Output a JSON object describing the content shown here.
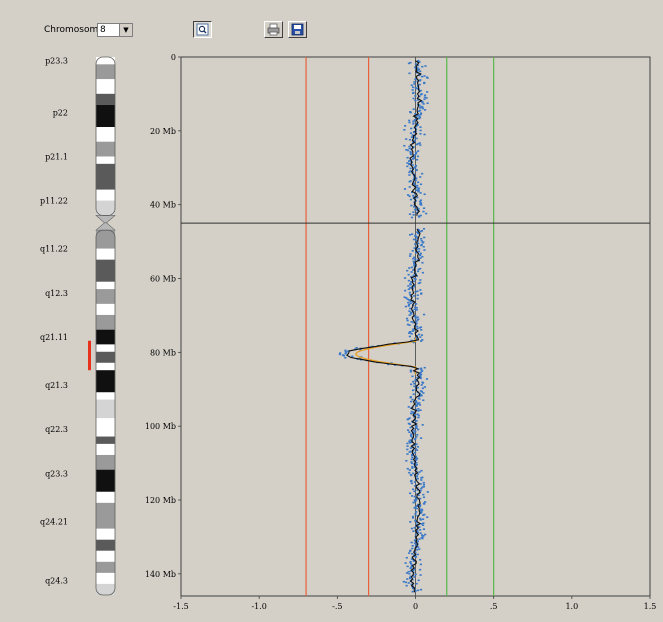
{
  "toolbar": {
    "chromosome_label": "Chromosome",
    "chromosome_value": "8",
    "icons": [
      "zoom-icon",
      "print-icon",
      "save-icon"
    ]
  },
  "ideogram": {
    "band_labels": [
      {
        "label": "p23.3",
        "mb": 1
      },
      {
        "label": "p22",
        "mb": 15
      },
      {
        "label": "p21.1",
        "mb": 27
      },
      {
        "label": "p11.22",
        "mb": 39
      },
      {
        "label": "q11.22",
        "mb": 52
      },
      {
        "label": "q12.3",
        "mb": 64
      },
      {
        "label": "q21.11",
        "mb": 76
      },
      {
        "label": "q21.3",
        "mb": 89
      },
      {
        "label": "q22.3",
        "mb": 101
      },
      {
        "label": "q23.3",
        "mb": 113
      },
      {
        "label": "q24.21",
        "mb": 126
      },
      {
        "label": "q24.3",
        "mb": 142
      }
    ],
    "bands": [
      {
        "start": 0,
        "end": 2,
        "stain": "gneg"
      },
      {
        "start": 2,
        "end": 6,
        "stain": "gpos50"
      },
      {
        "start": 6,
        "end": 10,
        "stain": "gneg"
      },
      {
        "start": 10,
        "end": 13,
        "stain": "gpos75"
      },
      {
        "start": 13,
        "end": 19,
        "stain": "gpos100"
      },
      {
        "start": 19,
        "end": 23,
        "stain": "gneg"
      },
      {
        "start": 23,
        "end": 27,
        "stain": "gpos50"
      },
      {
        "start": 27,
        "end": 29,
        "stain": "gneg"
      },
      {
        "start": 29,
        "end": 36,
        "stain": "gpos75"
      },
      {
        "start": 36,
        "end": 39,
        "stain": "gneg"
      },
      {
        "start": 39,
        "end": 43,
        "stain": "gpos25"
      },
      {
        "start": 43,
        "end": 45,
        "stain": "acen"
      },
      {
        "start": 45,
        "end": 47,
        "stain": "acen"
      },
      {
        "start": 47,
        "end": 52,
        "stain": "gpos50"
      },
      {
        "start": 52,
        "end": 55,
        "stain": "gneg"
      },
      {
        "start": 55,
        "end": 61,
        "stain": "gpos75"
      },
      {
        "start": 61,
        "end": 63,
        "stain": "gneg"
      },
      {
        "start": 63,
        "end": 67,
        "stain": "gpos50"
      },
      {
        "start": 67,
        "end": 70,
        "stain": "gneg"
      },
      {
        "start": 70,
        "end": 74,
        "stain": "gpos50"
      },
      {
        "start": 74,
        "end": 78,
        "stain": "gpos100"
      },
      {
        "start": 78,
        "end": 80,
        "stain": "gneg"
      },
      {
        "start": 80,
        "end": 83,
        "stain": "gpos75"
      },
      {
        "start": 83,
        "end": 85,
        "stain": "gneg"
      },
      {
        "start": 85,
        "end": 91,
        "stain": "gpos100"
      },
      {
        "start": 91,
        "end": 93,
        "stain": "gneg"
      },
      {
        "start": 93,
        "end": 98,
        "stain": "gpos25"
      },
      {
        "start": 98,
        "end": 103,
        "stain": "gneg"
      },
      {
        "start": 103,
        "end": 105,
        "stain": "gpos75"
      },
      {
        "start": 105,
        "end": 108,
        "stain": "gneg"
      },
      {
        "start": 108,
        "end": 112,
        "stain": "gpos50"
      },
      {
        "start": 112,
        "end": 118,
        "stain": "gpos100"
      },
      {
        "start": 118,
        "end": 121,
        "stain": "gneg"
      },
      {
        "start": 121,
        "end": 128,
        "stain": "gpos50"
      },
      {
        "start": 128,
        "end": 131,
        "stain": "gneg"
      },
      {
        "start": 131,
        "end": 134,
        "stain": "gpos75"
      },
      {
        "start": 134,
        "end": 137,
        "stain": "gneg"
      },
      {
        "start": 137,
        "end": 140,
        "stain": "gpos50"
      },
      {
        "start": 140,
        "end": 143,
        "stain": "gneg"
      },
      {
        "start": 143,
        "end": 146,
        "stain": "gpos25"
      }
    ],
    "highlight": {
      "start": 77,
      "end": 85,
      "color": "#e8321e"
    }
  },
  "chart_data": {
    "type": "scatter",
    "orientation": "vertical-genome",
    "x_ticks": [
      -1.5,
      -1.0,
      -0.5,
      0,
      0.5,
      1.0,
      1.5
    ],
    "x_tick_labels": [
      "-1.5",
      "-1.0",
      "-.5",
      "0",
      ".5",
      "1.0",
      "1.5"
    ],
    "xlim": [
      -1.5,
      1.5
    ],
    "y_ticks": [
      0,
      20,
      40,
      60,
      80,
      100,
      120,
      140
    ],
    "y_tick_labels": [
      "0",
      "20 Mb",
      "40 Mb",
      "60 Mb",
      "80 Mb",
      "100 Mb",
      "120 Mb",
      "140 Mb"
    ],
    "ylim": [
      0,
      146
    ],
    "centromere_mb": 45,
    "threshold_lines": [
      {
        "x": -0.7,
        "color": "#e8603c"
      },
      {
        "x": -0.3,
        "color": "#e8603c"
      },
      {
        "x": 0.2,
        "color": "#58b848"
      },
      {
        "x": 0.5,
        "color": "#58b848"
      }
    ],
    "deletion_segment": {
      "start_mb": 77,
      "end_mb": 85,
      "mean": -0.45
    },
    "point_color": "#3a78c8",
    "smooth_color": "#101010",
    "segment_color": "#e8a020"
  }
}
